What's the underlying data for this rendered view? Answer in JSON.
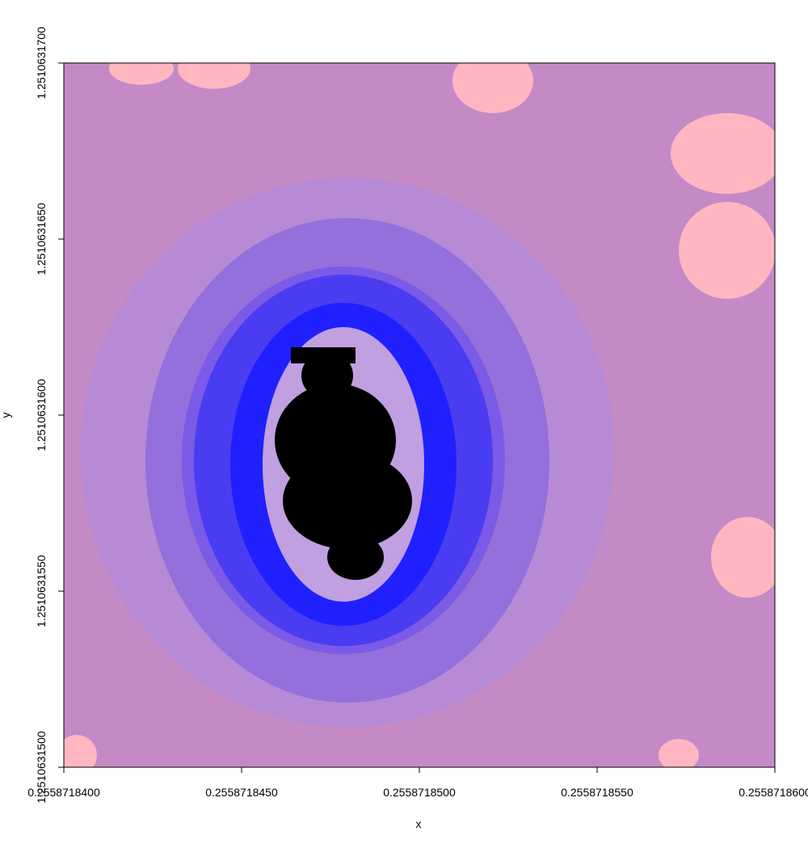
{
  "chart_data": {
    "type": "image",
    "xlabel": "x",
    "ylabel": "y",
    "xlim": [
      0.25587184,
      0.25587186
    ],
    "ylim": [
      1.25106315,
      1.25106317
    ],
    "xticks": [
      {
        "value": 0.25587184,
        "label": "0.2558718400"
      },
      {
        "value": 0.255871845,
        "label": "0.2558718450"
      },
      {
        "value": 0.25587185,
        "label": "0.2558718500"
      },
      {
        "value": 0.255871855,
        "label": "0.2558718550"
      },
      {
        "value": 0.25587186,
        "label": "0.2558718600"
      }
    ],
    "yticks": [
      {
        "value": 1.25106315,
        "label": "1.2510631500"
      },
      {
        "value": 1.251063155,
        "label": "1.2510631550"
      },
      {
        "value": 1.25106316,
        "label": "1.2510631600"
      },
      {
        "value": 1.251063165,
        "label": "1.2510631650"
      },
      {
        "value": 1.25106317,
        "label": "1.2510631700"
      }
    ]
  }
}
